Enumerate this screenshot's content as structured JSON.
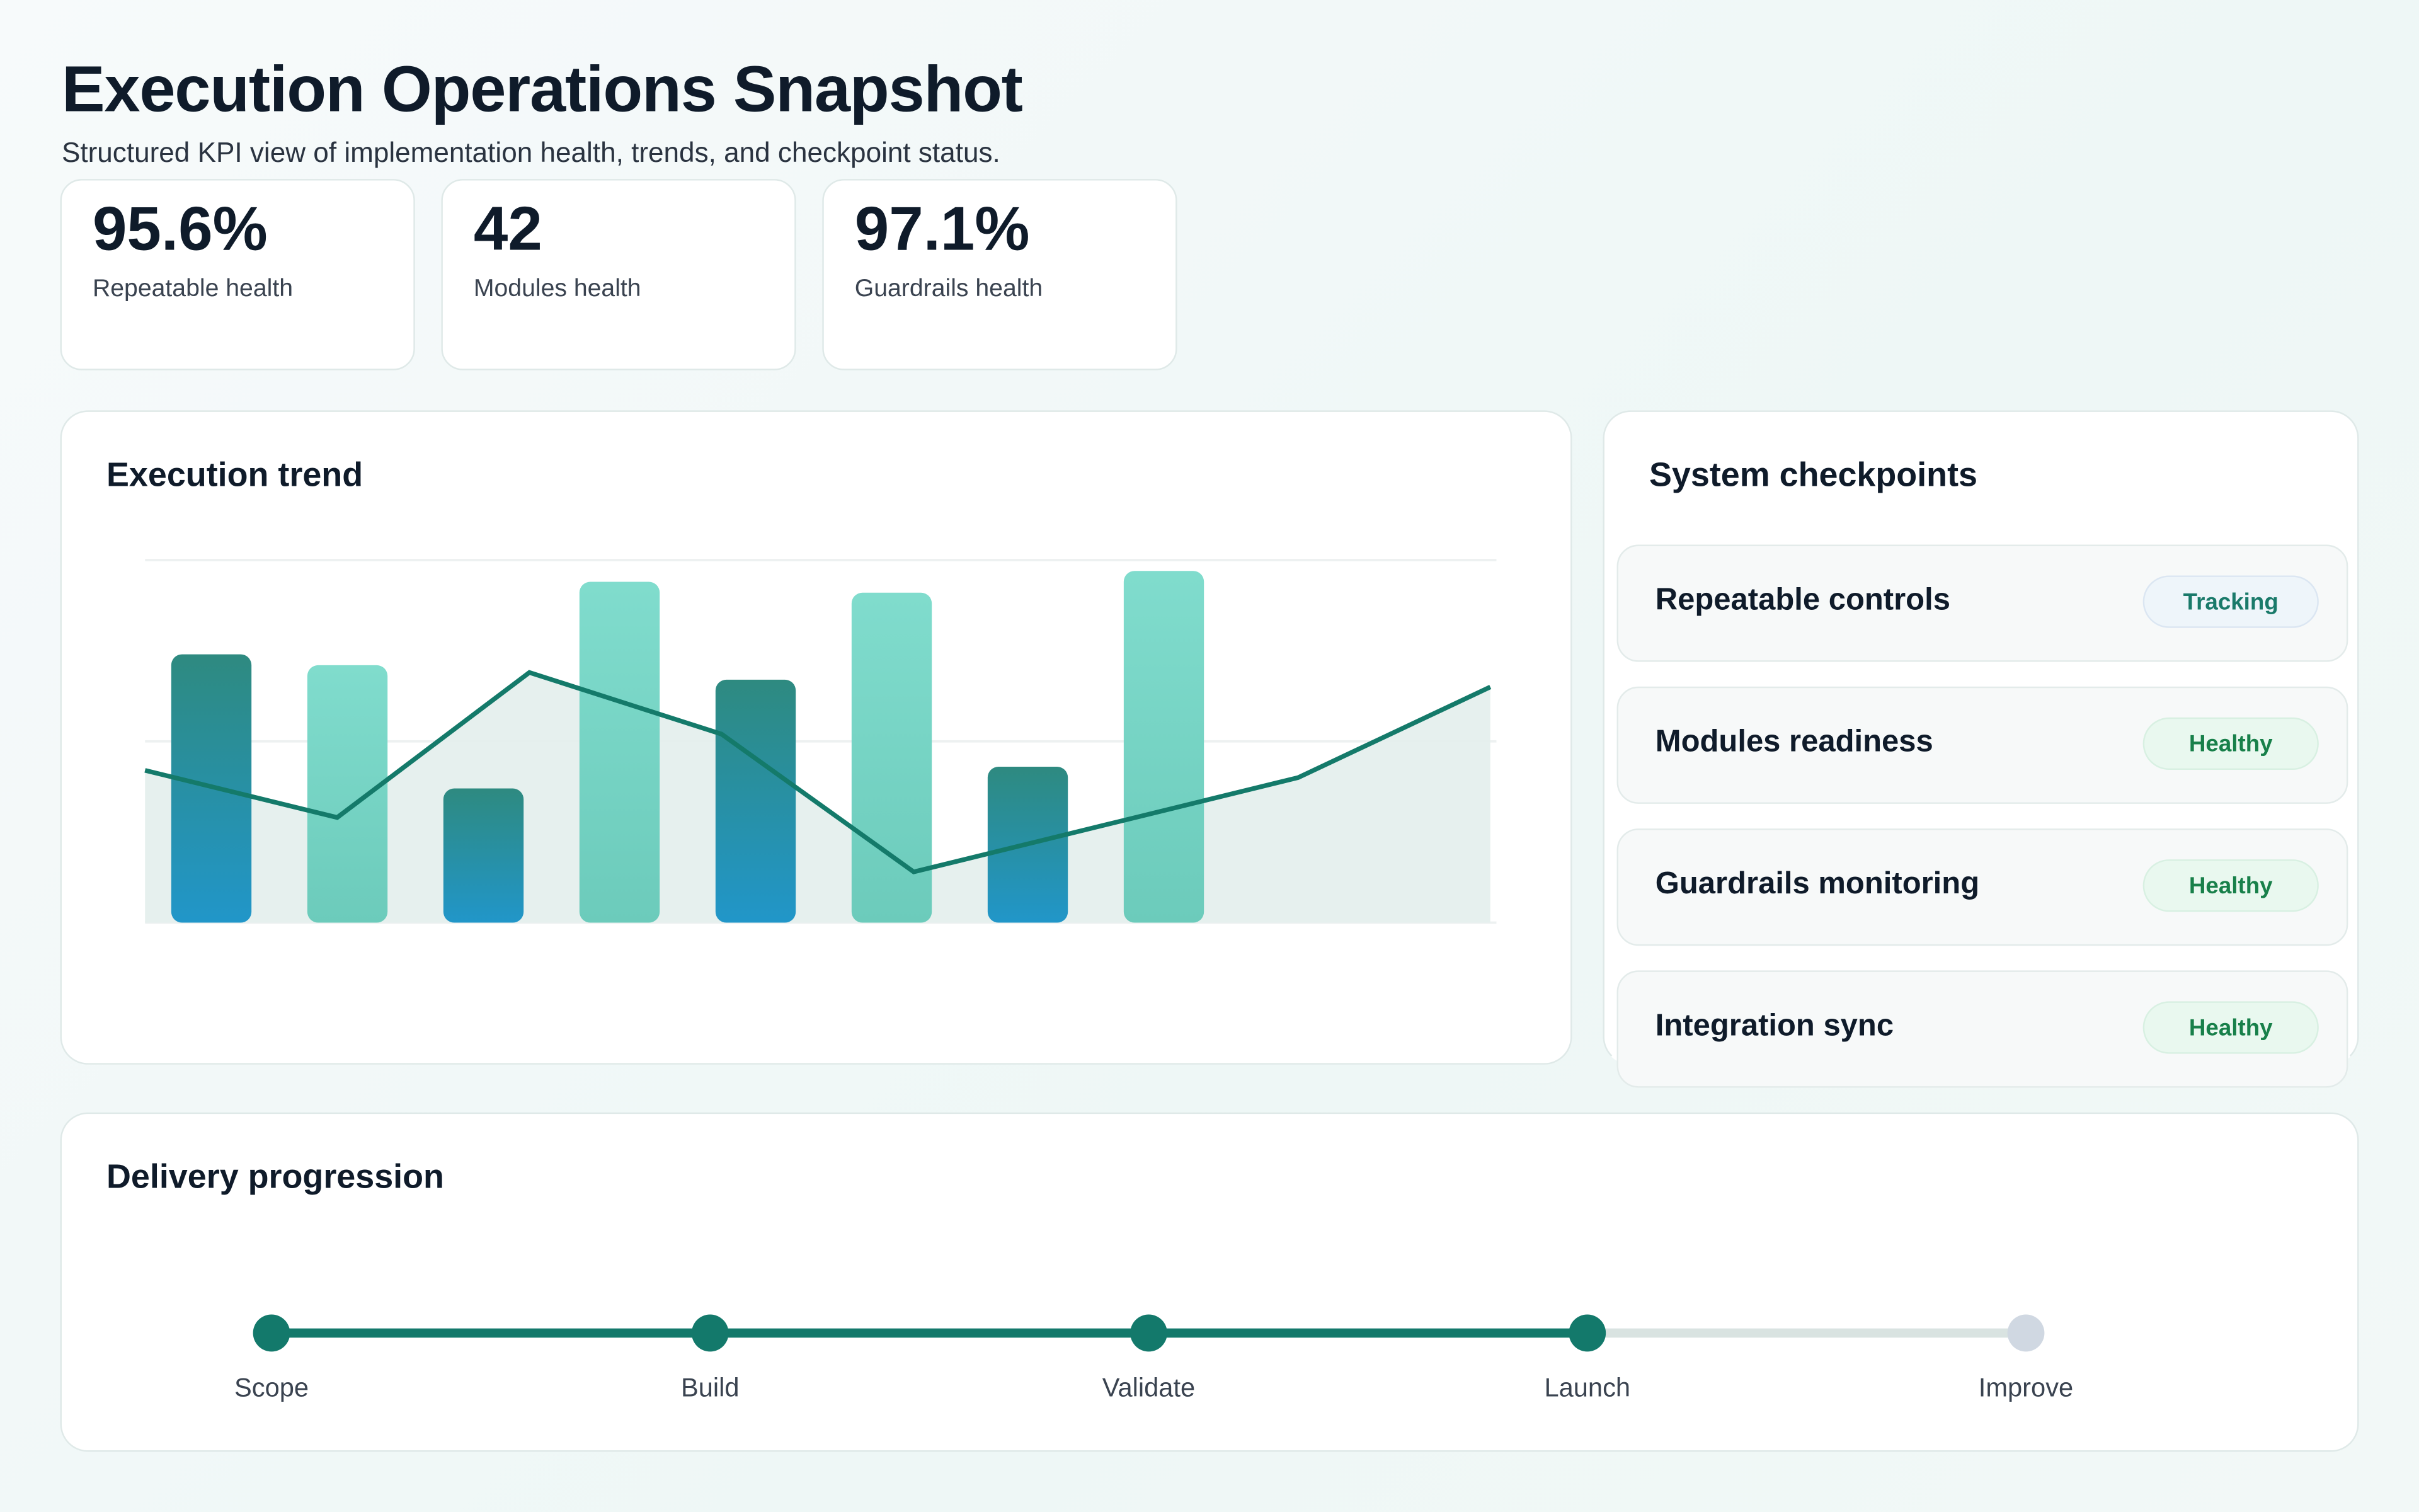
{
  "header": {
    "title": "Execution Operations Snapshot",
    "subtitle": "Structured KPI view of implementation health, trends, and checkpoint status."
  },
  "kpis": [
    {
      "value": "95.6%",
      "label": "Repeatable health"
    },
    {
      "value": "42",
      "label": "Modules health"
    },
    {
      "value": "97.1%",
      "label": "Guardrails health"
    }
  ],
  "trend": {
    "title": "Execution trend"
  },
  "chart_data": {
    "type": "bar",
    "title": "Execution trend",
    "ylim": [
      0,
      100
    ],
    "grid": true,
    "bars": {
      "values": [
        74,
        71,
        37,
        94,
        67,
        91,
        43,
        97
      ],
      "colors": [
        "dark",
        "light",
        "dark",
        "light",
        "dark",
        "light",
        "dark",
        "light"
      ]
    },
    "line": {
      "values": [
        42,
        29,
        69,
        52,
        14,
        27,
        40,
        65
      ],
      "type": "area-line"
    },
    "colors": {
      "dark_top": "#2e8a80",
      "dark_bottom": "#2196c9",
      "light_top": "#80dccd",
      "light_bottom": "#6ccbbb",
      "line": "#147a6a",
      "area": "#e3eeec"
    }
  },
  "checkpoints": {
    "title": "System checkpoints",
    "items": [
      {
        "name": "Repeatable controls",
        "status": "Tracking",
        "kind": "track"
      },
      {
        "name": "Modules readiness",
        "status": "Healthy",
        "kind": "healthy"
      },
      {
        "name": "Guardrails monitoring",
        "status": "Healthy",
        "kind": "healthy"
      },
      {
        "name": "Integration sync",
        "status": "Healthy",
        "kind": "healthy"
      }
    ]
  },
  "progression": {
    "title": "Delivery progression",
    "steps": [
      {
        "label": "Scope",
        "done": true
      },
      {
        "label": "Build",
        "done": true
      },
      {
        "label": "Validate",
        "done": true
      },
      {
        "label": "Launch",
        "done": true
      },
      {
        "label": "Improve",
        "done": false
      }
    ],
    "colors": {
      "done": "#13796b",
      "pending": "#d9e3e1",
      "pending_dot": "#d0d8e2"
    }
  }
}
